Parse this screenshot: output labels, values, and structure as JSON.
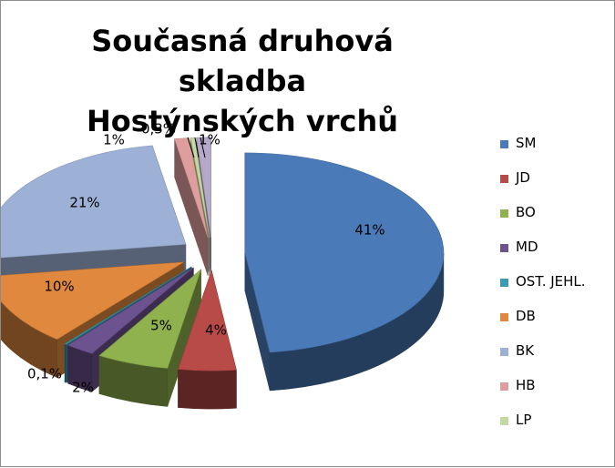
{
  "chart_data": {
    "type": "pie",
    "title": "Současná druhová skladba Hostýnských vrchů",
    "title_lines": [
      "Současná druhová skladba",
      "Hostýnských vrchů"
    ],
    "exploded": true,
    "three_d": true,
    "legend_position": "right",
    "slices": [
      {
        "category": "SM",
        "value": 41,
        "label": "41%",
        "color": "#4a7ab8"
      },
      {
        "category": "JD",
        "value": 4,
        "label": "4%",
        "color": "#b84a48"
      },
      {
        "category": "BO",
        "value": 5,
        "label": "5%",
        "color": "#8fb14e"
      },
      {
        "category": "MD",
        "value": 2,
        "label": "2%",
        "color": "#6d5290"
      },
      {
        "category": "OST. JEHL.",
        "value": 0.1,
        "label": "0,1%",
        "color": "#3a9bb2"
      },
      {
        "category": "DB",
        "value": 10,
        "label": "10%",
        "color": "#e0893e"
      },
      {
        "category": "BK",
        "value": 21,
        "label": "21%",
        "color": "#9db1d7"
      },
      {
        "category": "HB",
        "value": 1,
        "label": "1%",
        "color": "#de9e9d"
      },
      {
        "category": "LP",
        "value": 0.3,
        "label": "0,3%",
        "color": "#c2d99f"
      },
      {
        "category": "",
        "value": 1,
        "label": "1%",
        "color": "#b5a8c9"
      }
    ]
  }
}
